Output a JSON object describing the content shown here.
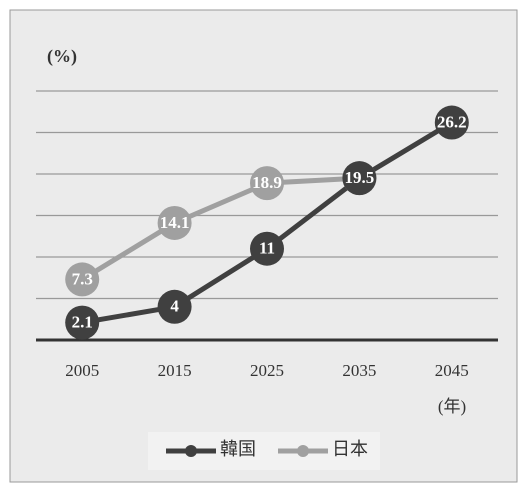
{
  "chart_data": {
    "type": "line",
    "y_label": "(%)",
    "x_label": "(年)",
    "categories": [
      "2005",
      "2015",
      "2025",
      "2035",
      "2045"
    ],
    "series": [
      {
        "name": "韓国",
        "color": "#404040",
        "values": [
          2.1,
          4,
          11,
          19.5,
          26.2
        ]
      },
      {
        "name": "日本",
        "color": "#a0a0a0",
        "values": [
          7.3,
          14.1,
          18.9,
          19.5,
          null
        ]
      }
    ],
    "ylim": [
      0,
      30
    ],
    "yticks": [
      0,
      5,
      10,
      15,
      20,
      25,
      30
    ],
    "grid": true,
    "legend": "bottom"
  }
}
